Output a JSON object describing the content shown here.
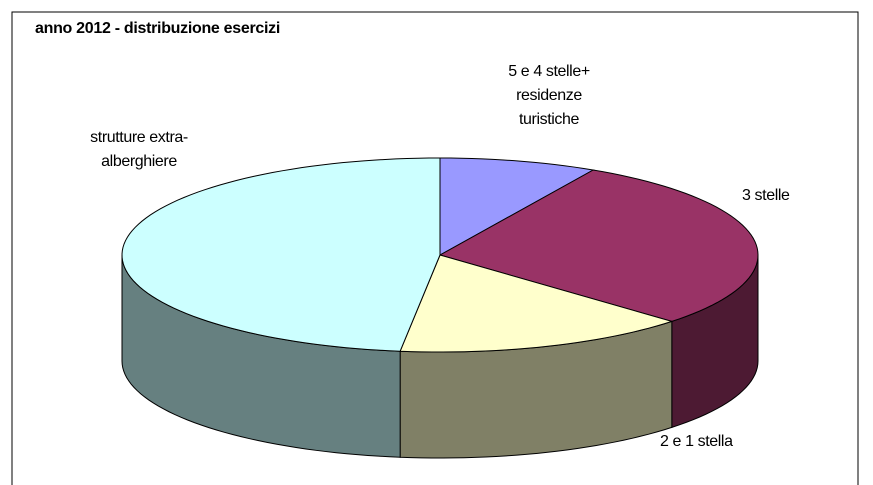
{
  "chart_data": {
    "type": "pie",
    "title": "anno 2012 - distribuzione esercizi",
    "categories": [
      "5 e 4 stelle+ residenze turistiche",
      "3 stelle",
      "2 e 1 stella",
      "strutture extra-alberghiere"
    ],
    "values": [
      8,
      29,
      15,
      48
    ],
    "colors": [
      "#9999ff",
      "#993366",
      "#ffffcc",
      "#ccffff"
    ],
    "side_colors": [
      "#4d4d80",
      "#4d1a33",
      "#808066",
      "#668080"
    ]
  }
}
